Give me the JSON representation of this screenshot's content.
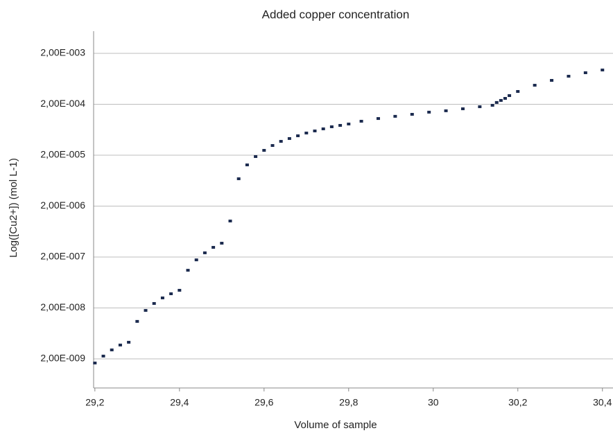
{
  "chart_data": {
    "type": "scatter",
    "title": "Added copper concentration",
    "x_label": "Volume of sample",
    "y_label": "Log([Cu2+]) (mol L-1)",
    "x": [
      29.2,
      29.22,
      29.24,
      29.26,
      29.28,
      29.3,
      29.32,
      29.34,
      29.36,
      29.38,
      29.4,
      29.42,
      29.44,
      29.46,
      29.48,
      29.5,
      29.52,
      29.54,
      29.56,
      29.58,
      29.6,
      29.62,
      29.64,
      29.66,
      29.68,
      29.7,
      29.72,
      29.74,
      29.76,
      29.78,
      29.8,
      29.83,
      29.87,
      29.91,
      29.95,
      29.99,
      30.03,
      30.07,
      30.11,
      30.14,
      30.15,
      30.16,
      30.17,
      30.18,
      30.2,
      30.24,
      30.28,
      30.32,
      30.36,
      30.4
    ],
    "values": [
      1.66e-09,
      2.27e-09,
      3e-09,
      3.74e-09,
      4.24e-09,
      1.09e-08,
      1.79e-08,
      2.45e-08,
      3.15e-08,
      3.8e-08,
      4.45e-08,
      1.1e-07,
      1.76e-07,
      2.42e-07,
      3.1e-07,
      3.74e-07,
      1.02e-06,
      6.89e-06,
      1.29e-05,
      1.88e-05,
      2.49e-05,
      3.1e-05,
      3.74e-05,
      4.25e-05,
      4.81e-05,
      5.45e-05,
      5.99e-05,
      6.58e-05,
      7.23e-05,
      7.7e-05,
      8.19e-05,
      9.29e-05,
      0.000105,
      0.000116,
      0.000127,
      0.00014,
      0.000149,
      0.000163,
      0.000179,
      0.000191,
      0.000217,
      0.000238,
      0.000261,
      0.000296,
      0.000357,
      0.000473,
      0.000589,
      0.000711,
      0.000832,
      0.000942
    ],
    "color": "#1c2b4f",
    "xlim": [
      29.197,
      30.425
    ],
    "xticks": [
      {
        "value": 29.2,
        "label": "29,2"
      },
      {
        "value": 29.4,
        "label": "29,4"
      },
      {
        "value": 29.6,
        "label": "29,6"
      },
      {
        "value": 29.8,
        "label": "29,8"
      },
      30,
      {
        "value": 30.2,
        "label": "30,2"
      },
      {
        "value": 30.4,
        "label": "30,4"
      }
    ],
    "ylim": [
      5.37e-10,
      0.00545
    ],
    "ylog": true,
    "yticks": [
      {
        "value": 0.002,
        "label": "2,00E-003"
      },
      {
        "value": 0.0002,
        "label": "2,00E-004"
      },
      {
        "value": 2e-05,
        "label": "2,00E-005"
      },
      {
        "value": 2e-06,
        "label": "2,00E-006"
      },
      {
        "value": 2e-07,
        "label": "2,00E-007"
      },
      {
        "value": 2e-08,
        "label": "2,00E-008"
      },
      {
        "value": 2e-09,
        "label": "2,00E-009"
      }
    ],
    "grid": true
  }
}
